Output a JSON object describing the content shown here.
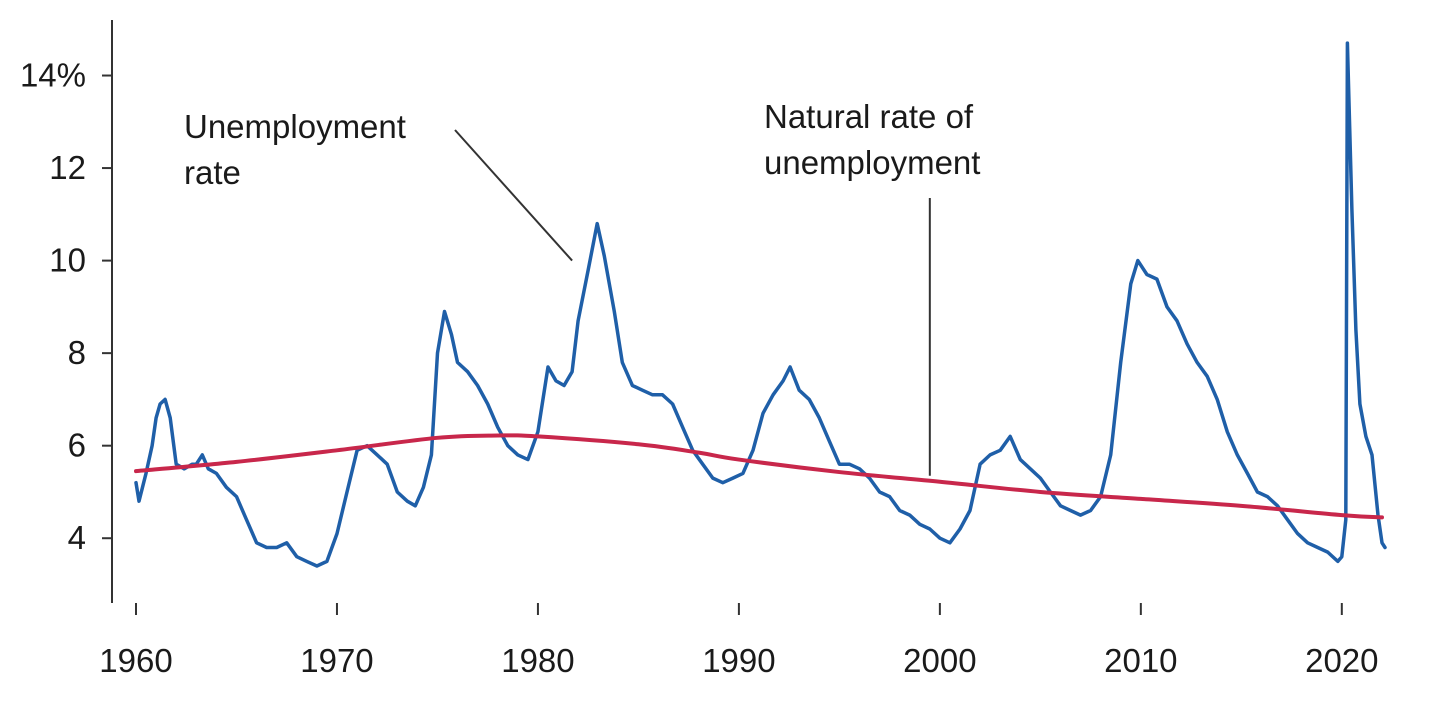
{
  "chart_data": {
    "type": "line",
    "xlim": [
      1960,
      2022
    ],
    "ylim": [
      2.6,
      15.2
    ],
    "x_ticks": [
      1960,
      1970,
      1980,
      1990,
      2000,
      2010,
      2020
    ],
    "x_tick_labels": [
      "1960",
      "1970",
      "1980",
      "1990",
      "2000",
      "2010",
      "2020"
    ],
    "y_ticks": [
      4,
      6,
      8,
      10,
      12,
      14
    ],
    "y_tick_labels": [
      "4",
      "6",
      "8",
      "10",
      "12",
      "14%"
    ],
    "grid": false,
    "series": [
      {
        "name": "Unemployment rate",
        "color": "#1f5fa8",
        "points": [
          [
            1960.0,
            5.2
          ],
          [
            1960.15,
            4.8
          ],
          [
            1960.5,
            5.4
          ],
          [
            1960.8,
            6.0
          ],
          [
            1961.0,
            6.6
          ],
          [
            1961.2,
            6.9
          ],
          [
            1961.45,
            7.0
          ],
          [
            1961.7,
            6.6
          ],
          [
            1962.0,
            5.6
          ],
          [
            1962.4,
            5.5
          ],
          [
            1962.8,
            5.6
          ],
          [
            1963.0,
            5.6
          ],
          [
            1963.3,
            5.8
          ],
          [
            1963.6,
            5.5
          ],
          [
            1964.0,
            5.4
          ],
          [
            1964.5,
            5.1
          ],
          [
            1965.0,
            4.9
          ],
          [
            1965.5,
            4.4
          ],
          [
            1966.0,
            3.9
          ],
          [
            1966.5,
            3.8
          ],
          [
            1967.0,
            3.8
          ],
          [
            1967.5,
            3.9
          ],
          [
            1968.0,
            3.6
          ],
          [
            1968.5,
            3.5
          ],
          [
            1969.0,
            3.4
          ],
          [
            1969.5,
            3.5
          ],
          [
            1970.0,
            4.1
          ],
          [
            1970.5,
            5.0
          ],
          [
            1971.0,
            5.9
          ],
          [
            1971.5,
            6.0
          ],
          [
            1972.0,
            5.8
          ],
          [
            1972.5,
            5.6
          ],
          [
            1973.0,
            5.0
          ],
          [
            1973.5,
            4.8
          ],
          [
            1973.9,
            4.7
          ],
          [
            1974.3,
            5.1
          ],
          [
            1974.7,
            5.8
          ],
          [
            1975.0,
            8.0
          ],
          [
            1975.35,
            8.9
          ],
          [
            1975.7,
            8.4
          ],
          [
            1976.0,
            7.8
          ],
          [
            1976.5,
            7.6
          ],
          [
            1977.0,
            7.3
          ],
          [
            1977.5,
            6.9
          ],
          [
            1978.0,
            6.4
          ],
          [
            1978.5,
            6.0
          ],
          [
            1979.0,
            5.8
          ],
          [
            1979.5,
            5.7
          ],
          [
            1980.0,
            6.3
          ],
          [
            1980.5,
            7.7
          ],
          [
            1980.9,
            7.4
          ],
          [
            1981.3,
            7.3
          ],
          [
            1981.7,
            7.6
          ],
          [
            1982.0,
            8.7
          ],
          [
            1982.5,
            9.8
          ],
          [
            1982.95,
            10.8
          ],
          [
            1983.3,
            10.1
          ],
          [
            1983.8,
            8.9
          ],
          [
            1984.2,
            7.8
          ],
          [
            1984.7,
            7.3
          ],
          [
            1985.2,
            7.2
          ],
          [
            1985.7,
            7.1
          ],
          [
            1986.2,
            7.1
          ],
          [
            1986.7,
            6.9
          ],
          [
            1987.2,
            6.4
          ],
          [
            1987.7,
            5.9
          ],
          [
            1988.2,
            5.6
          ],
          [
            1988.7,
            5.3
          ],
          [
            1989.2,
            5.2
          ],
          [
            1989.7,
            5.3
          ],
          [
            1990.2,
            5.4
          ],
          [
            1990.7,
            5.9
          ],
          [
            1991.2,
            6.7
          ],
          [
            1991.7,
            7.1
          ],
          [
            1992.2,
            7.4
          ],
          [
            1992.55,
            7.7
          ],
          [
            1993.0,
            7.2
          ],
          [
            1993.5,
            7.0
          ],
          [
            1994.0,
            6.6
          ],
          [
            1994.5,
            6.1
          ],
          [
            1995.0,
            5.6
          ],
          [
            1995.5,
            5.6
          ],
          [
            1996.0,
            5.5
          ],
          [
            1996.5,
            5.3
          ],
          [
            1997.0,
            5.0
          ],
          [
            1997.5,
            4.9
          ],
          [
            1998.0,
            4.6
          ],
          [
            1998.5,
            4.5
          ],
          [
            1999.0,
            4.3
          ],
          [
            1999.5,
            4.2
          ],
          [
            2000.0,
            4.0
          ],
          [
            2000.5,
            3.9
          ],
          [
            2001.0,
            4.2
          ],
          [
            2001.5,
            4.6
          ],
          [
            2002.0,
            5.6
          ],
          [
            2002.5,
            5.8
          ],
          [
            2003.0,
            5.9
          ],
          [
            2003.5,
            6.2
          ],
          [
            2004.0,
            5.7
          ],
          [
            2004.5,
            5.5
          ],
          [
            2005.0,
            5.3
          ],
          [
            2005.5,
            5.0
          ],
          [
            2006.0,
            4.7
          ],
          [
            2006.5,
            4.6
          ],
          [
            2007.0,
            4.5
          ],
          [
            2007.5,
            4.6
          ],
          [
            2008.0,
            4.9
          ],
          [
            2008.5,
            5.8
          ],
          [
            2009.0,
            7.8
          ],
          [
            2009.5,
            9.5
          ],
          [
            2009.85,
            10.0
          ],
          [
            2010.3,
            9.7
          ],
          [
            2010.8,
            9.6
          ],
          [
            2011.3,
            9.0
          ],
          [
            2011.8,
            8.7
          ],
          [
            2012.3,
            8.2
          ],
          [
            2012.8,
            7.8
          ],
          [
            2013.3,
            7.5
          ],
          [
            2013.8,
            7.0
          ],
          [
            2014.3,
            6.3
          ],
          [
            2014.8,
            5.8
          ],
          [
            2015.3,
            5.4
          ],
          [
            2015.8,
            5.0
          ],
          [
            2016.3,
            4.9
          ],
          [
            2016.8,
            4.7
          ],
          [
            2017.3,
            4.4
          ],
          [
            2017.8,
            4.1
          ],
          [
            2018.3,
            3.9
          ],
          [
            2018.8,
            3.8
          ],
          [
            2019.3,
            3.7
          ],
          [
            2019.8,
            3.5
          ],
          [
            2020.0,
            3.6
          ],
          [
            2020.2,
            4.4
          ],
          [
            2020.28,
            14.7
          ],
          [
            2020.5,
            11.1
          ],
          [
            2020.7,
            8.5
          ],
          [
            2020.9,
            6.9
          ],
          [
            2021.2,
            6.2
          ],
          [
            2021.5,
            5.8
          ],
          [
            2021.8,
            4.5
          ],
          [
            2022.0,
            3.9
          ],
          [
            2022.15,
            3.8
          ]
        ]
      },
      {
        "name": "Natural rate of unemployment",
        "color": "#c8274b",
        "points": [
          [
            1960,
            5.45
          ],
          [
            1965,
            5.65
          ],
          [
            1970,
            5.9
          ],
          [
            1975,
            6.17
          ],
          [
            1978,
            6.22
          ],
          [
            1980,
            6.2
          ],
          [
            1985,
            6.03
          ],
          [
            1988,
            5.85
          ],
          [
            1990,
            5.7
          ],
          [
            1995,
            5.43
          ],
          [
            2000,
            5.22
          ],
          [
            2005,
            5.0
          ],
          [
            2010,
            4.85
          ],
          [
            2015,
            4.7
          ],
          [
            2020,
            4.5
          ],
          [
            2022,
            4.45
          ]
        ]
      }
    ],
    "annotations": [
      {
        "text": [
          "Unemployment",
          "rate"
        ],
        "target": [
          1981.7,
          10.0
        ]
      },
      {
        "text": [
          "Natural rate of",
          "unemployment"
        ],
        "target": [
          1999.5,
          5.35
        ]
      }
    ]
  }
}
